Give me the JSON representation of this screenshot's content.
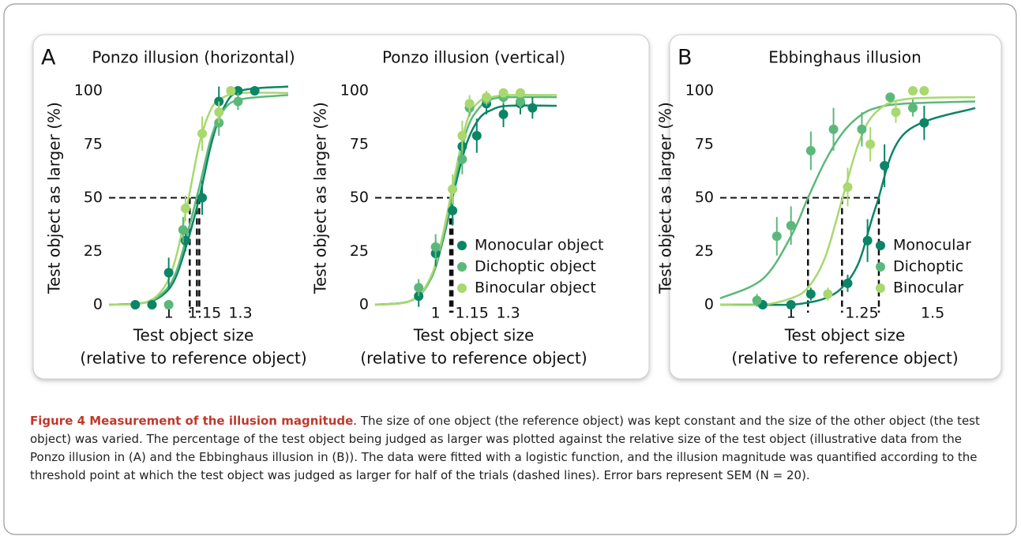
{
  "panels": [
    "A",
    "B"
  ],
  "chart_data": [
    {
      "type": "scatter",
      "title": "Ponzo illusion (horizontal)",
      "ylabel": "Test object as larger (%)",
      "xlabel": [
        "Test object size",
        "(relative to reference object)"
      ],
      "xlim": [
        0.75,
        1.5
      ],
      "xticks": [
        1,
        1.15,
        1.3
      ],
      "ylim": [
        0,
        100
      ],
      "yticks": [
        0,
        25,
        50,
        75,
        100
      ],
      "criterion": 50,
      "legend": false,
      "fit_x": [
        0.75,
        0.9,
        0.98,
        1.03,
        1.08,
        1.13,
        1.18,
        1.23,
        1.3,
        1.5
      ],
      "series": [
        {
          "color": "#0b8566",
          "x": [
            0.86,
            0.93,
            1.0,
            1.07,
            1.14,
            1.21,
            1.29,
            1.36
          ],
          "values": [
            0,
            0,
            15,
            30,
            50,
            95,
            100,
            100
          ],
          "errors": [
            2,
            2,
            7,
            5,
            8,
            7,
            2,
            2
          ],
          "threshold": 1.128,
          "fit": [
            0,
            1,
            5,
            13,
            30,
            51,
            76,
            92,
            100,
            102
          ]
        },
        {
          "color": "#5cb87a",
          "x": [
            1.0,
            1.06,
            1.21,
            1.29
          ],
          "values": [
            0,
            35,
            85,
            95
          ],
          "errors": [
            2,
            6,
            6,
            4
          ],
          "threshold": 1.118,
          "fit": [
            0,
            1,
            6,
            15,
            34,
            56,
            79,
            91,
            96,
            98
          ]
        },
        {
          "color": "#a8d86e",
          "x": [
            1.07,
            1.14,
            1.21,
            1.26
          ],
          "values": [
            45,
            80,
            90,
            100
          ],
          "errors": [
            6,
            8,
            5,
            2
          ],
          "threshold": 1.088,
          "fit": [
            0,
            1,
            8,
            22,
            48,
            76,
            92,
            97,
            99,
            99
          ]
        }
      ]
    },
    {
      "type": "scatter",
      "title": "Ponzo illusion (vertical)",
      "ylabel": "Test object as larger (%)",
      "xlabel": [
        "Test object size",
        "(relative to reference object)"
      ],
      "xlim": [
        0.75,
        1.5
      ],
      "xticks": [
        1,
        1.15,
        1.3
      ],
      "ylim": [
        0,
        100
      ],
      "yticks": [
        0,
        25,
        50,
        75,
        100
      ],
      "criterion": 50,
      "legend": "lower right",
      "fit_x": [
        0.75,
        0.9,
        0.98,
        1.03,
        1.08,
        1.13,
        1.18,
        1.23,
        1.3,
        1.5
      ],
      "series": [
        {
          "name": "Monocular object",
          "color": "#0b8566",
          "x": [
            0.93,
            1.0,
            1.07,
            1.11,
            1.17,
            1.21,
            1.28,
            1.35,
            1.4
          ],
          "values": [
            4,
            24,
            44,
            74,
            79,
            94,
            89,
            94,
            92
          ],
          "errors": [
            5,
            6,
            7,
            7,
            8,
            5,
            6,
            5,
            5
          ],
          "threshold": 1.07,
          "fit": [
            0,
            2,
            12,
            30,
            55,
            76,
            87,
            91,
            93,
            93
          ]
        },
        {
          "name": "Dichoptic object",
          "color": "#5cb87a",
          "x": [
            0.93,
            1.0,
            1.11,
            1.14,
            1.21,
            1.28,
            1.35
          ],
          "values": [
            8,
            27,
            68,
            92,
            96,
            97,
            95
          ],
          "errors": [
            4,
            6,
            7,
            4,
            3,
            3,
            3
          ],
          "threshold": 1.065,
          "fit": [
            0,
            2,
            12,
            31,
            58,
            82,
            92,
            96,
            97,
            97
          ]
        },
        {
          "name": "Binocular object",
          "color": "#a8d86e",
          "x": [
            1.07,
            1.11,
            1.14,
            1.21,
            1.28,
            1.35
          ],
          "values": [
            54,
            79,
            94,
            97,
            99,
            99
          ],
          "errors": [
            7,
            7,
            4,
            3,
            2,
            2
          ],
          "threshold": 1.06,
          "fit": [
            0,
            2,
            13,
            33,
            61,
            86,
            95,
            97,
            98,
            98
          ]
        }
      ]
    },
    {
      "type": "scatter",
      "title": "Ebbinghaus illusion",
      "ylabel": "Test object as larger (%)",
      "xlabel": [
        "Test object size",
        "(relative to reference object)"
      ],
      "xlim": [
        0.75,
        1.65
      ],
      "xticks": [
        1,
        1.25,
        1.5
      ],
      "ylim": [
        0,
        100
      ],
      "yticks": [
        0,
        25,
        50,
        75,
        100
      ],
      "criterion": 50,
      "legend": "lower right",
      "fit_x": [
        0.75,
        0.9,
        1.0,
        1.06,
        1.12,
        1.18,
        1.24,
        1.3,
        1.4,
        1.65
      ],
      "series": [
        {
          "name": "Monocular",
          "color": "#0b8566",
          "x": [
            0.9,
            1.0,
            1.07,
            1.2,
            1.27,
            1.33,
            1.47
          ],
          "values": [
            0,
            0,
            5,
            10,
            30,
            65,
            85
          ],
          "errors": [
            2,
            2,
            3,
            4,
            10,
            10,
            8
          ],
          "threshold": 1.31,
          "fit": [
            0,
            0,
            0,
            1,
            3,
            8,
            20,
            46,
            80,
            92
          ]
        },
        {
          "name": "Dichoptic",
          "color": "#5cb87a",
          "x": [
            0.88,
            0.95,
            1.0,
            1.07,
            1.15,
            1.25,
            1.35,
            1.43
          ],
          "values": [
            2,
            32,
            37,
            72,
            82,
            82,
            97,
            92
          ],
          "errors": [
            3,
            9,
            9,
            9,
            10,
            8,
            2,
            4
          ],
          "threshold": 1.06,
          "fit": [
            3,
            12,
            32,
            50,
            67,
            80,
            88,
            92,
            94,
            95
          ]
        },
        {
          "name": "Binocular",
          "color": "#a8d86e",
          "x": [
            1.13,
            1.2,
            1.28,
            1.37,
            1.43,
            1.47
          ],
          "values": [
            5,
            55,
            75,
            90,
            100,
            100
          ],
          "errors": [
            3,
            9,
            8,
            5,
            2,
            2
          ],
          "threshold": 1.18,
          "fit": [
            0,
            0,
            3,
            8,
            22,
            49,
            76,
            90,
            96,
            97
          ]
        }
      ]
    }
  ],
  "caption": {
    "title": "Figure 4 Measurement of the illusion magnitude",
    "text": ". The size of one object (the reference object) was kept constant and the size of the other object (the test object) was varied. The percentage of the test object being judged as larger was plotted against the relative size of the test object (illustrative data from the Ponzo illusion in (A) and the Ebbinghaus illusion in (B)). The data were fitted with a logistic function, and the illusion magnitude was quantified according to the threshold point at which the test object was judged as larger for half of the trials (dashed lines). Error bars represent SEM (N = 20)."
  }
}
